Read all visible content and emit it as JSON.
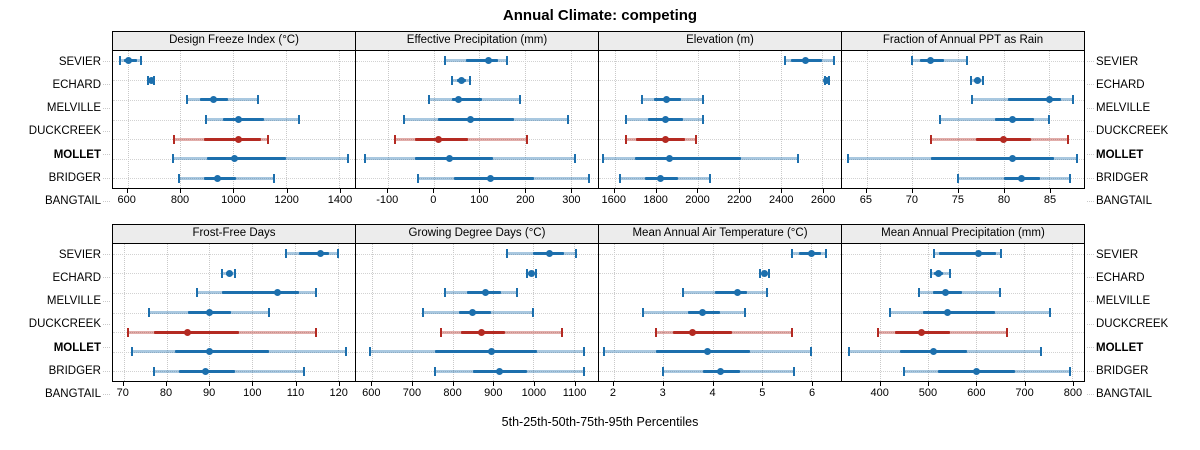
{
  "title": "Annual Climate: competing",
  "caption": "5th-25th-50th-75th-95th Percentiles",
  "sites": [
    "SEVIER",
    "ECHARD",
    "MELVILLE",
    "DUCKCREEK",
    "MOLLET",
    "BRIDGER",
    "BANGTAIL"
  ],
  "highlight_site": "MOLLET",
  "colors": {
    "point_normal": "#1c6fad",
    "band_normal": "rgba(28,111,173,0.38)",
    "point_highlight": "#b42a22",
    "band_highlight": "rgba(180,42,34,0.38)",
    "grid": "#c9c9c9",
    "strip_bg": "#ececec",
    "panel_border": "#000000"
  },
  "percentiles": [
    5,
    25,
    50,
    75,
    95
  ],
  "chart_data": [
    {
      "type": "scatter",
      "title": "Design Freeze Index (°C)",
      "xlim": [
        545,
        1460
      ],
      "ticks": [
        600,
        800,
        1000,
        1200,
        1400
      ],
      "series": [
        {
          "name": "SEVIER",
          "values": [
            570,
            585,
            605,
            635,
            650
          ]
        },
        {
          "name": "ECHARD",
          "values": [
            678,
            685,
            691,
            696,
            701
          ]
        },
        {
          "name": "MELVILLE",
          "values": [
            825,
            875,
            925,
            980,
            1095
          ]
        },
        {
          "name": "DUCKCREEK",
          "values": [
            895,
            960,
            1020,
            1115,
            1250
          ]
        },
        {
          "name": "MOLLET",
          "values": [
            775,
            890,
            1020,
            1105,
            1130
          ]
        },
        {
          "name": "BRIDGER",
          "values": [
            770,
            900,
            1005,
            1200,
            1435
          ]
        },
        {
          "name": "BANGTAIL",
          "values": [
            795,
            890,
            940,
            1010,
            1155
          ]
        }
      ]
    },
    {
      "type": "scatter",
      "title": "Effective Precipitation (mm)",
      "xlim": [
        -170,
        360
      ],
      "ticks": [
        -100,
        0,
        100,
        200,
        300
      ],
      "series": [
        {
          "name": "SEVIER",
          "values": [
            25,
            70,
            120,
            140,
            160
          ]
        },
        {
          "name": "ECHARD",
          "values": [
            40,
            52,
            61,
            70,
            80
          ]
        },
        {
          "name": "MELVILLE",
          "values": [
            -10,
            40,
            55,
            105,
            190
          ]
        },
        {
          "name": "DUCKCREEK",
          "values": [
            -65,
            10,
            80,
            175,
            295
          ]
        },
        {
          "name": "MOLLET",
          "values": [
            -85,
            -40,
            10,
            75,
            205
          ]
        },
        {
          "name": "BRIDGER",
          "values": [
            -150,
            -40,
            35,
            130,
            310
          ]
        },
        {
          "name": "BANGTAIL",
          "values": [
            -35,
            45,
            125,
            220,
            340
          ]
        }
      ]
    },
    {
      "type": "scatter",
      "title": "Elevation (m)",
      "xlim": [
        1525,
        2690
      ],
      "ticks": [
        1600,
        1800,
        2000,
        2200,
        2400,
        2600
      ],
      "series": [
        {
          "name": "SEVIER",
          "values": [
            2420,
            2450,
            2520,
            2600,
            2655
          ]
        },
        {
          "name": "ECHARD",
          "values": [
            2612,
            2617,
            2622,
            2627,
            2632
          ]
        },
        {
          "name": "MELVILLE",
          "values": [
            1730,
            1790,
            1850,
            1920,
            2025
          ]
        },
        {
          "name": "DUCKCREEK",
          "values": [
            1655,
            1760,
            1845,
            1930,
            2025
          ]
        },
        {
          "name": "MOLLET",
          "values": [
            1655,
            1705,
            1845,
            1940,
            1990
          ]
        },
        {
          "name": "BRIDGER",
          "values": [
            1545,
            1700,
            1865,
            2210,
            2485
          ]
        },
        {
          "name": "BANGTAIL",
          "values": [
            1625,
            1745,
            1820,
            1905,
            2060
          ]
        }
      ]
    },
    {
      "type": "scatter",
      "title": "Fraction of Annual PPT as Rain",
      "xlim": [
        62.3,
        88.8
      ],
      "ticks": [
        65,
        70,
        75,
        80,
        85
      ],
      "series": [
        {
          "name": "SEVIER",
          "values": [
            70,
            70.8,
            72,
            73.5,
            76
          ]
        },
        {
          "name": "ECHARD",
          "values": [
            76.4,
            76.8,
            77.1,
            77.4,
            77.7
          ]
        },
        {
          "name": "MELVILLE",
          "values": [
            76.5,
            80.5,
            85,
            86.3,
            87.6
          ]
        },
        {
          "name": "DUCKCREEK",
          "values": [
            73,
            79,
            81,
            83.3,
            85
          ]
        },
        {
          "name": "MOLLET",
          "values": [
            72,
            77,
            80,
            83,
            87
          ]
        },
        {
          "name": "BRIDGER",
          "values": [
            63,
            72,
            81,
            85.5,
            88
          ]
        },
        {
          "name": "BANGTAIL",
          "values": [
            75,
            80,
            82,
            84,
            87.3
          ]
        }
      ]
    },
    {
      "type": "scatter",
      "title": "Frost-Free Days",
      "xlim": [
        67.5,
        124
      ],
      "ticks": [
        70,
        80,
        90,
        100,
        110,
        120
      ],
      "series": [
        {
          "name": "SEVIER",
          "values": [
            108,
            111,
            116,
            118,
            120
          ]
        },
        {
          "name": "ECHARD",
          "values": [
            93,
            93.8,
            94.6,
            95.4,
            96.1
          ]
        },
        {
          "name": "MELVILLE",
          "values": [
            87,
            93,
            106,
            111,
            115
          ]
        },
        {
          "name": "DUCKCREEK",
          "values": [
            76,
            85,
            90,
            95,
            104
          ]
        },
        {
          "name": "MOLLET",
          "values": [
            71,
            77,
            85,
            97,
            115
          ]
        },
        {
          "name": "BRIDGER",
          "values": [
            72,
            82,
            90,
            104,
            122
          ]
        },
        {
          "name": "BANGTAIL",
          "values": [
            77,
            83,
            89,
            96,
            112
          ]
        }
      ]
    },
    {
      "type": "scatter",
      "title": "Growing Degree Days (°C)",
      "xlim": [
        560,
        1160
      ],
      "ticks": [
        600,
        700,
        800,
        900,
        1000,
        1100
      ],
      "series": [
        {
          "name": "SEVIER",
          "values": [
            935,
            1000,
            1040,
            1075,
            1105
          ]
        },
        {
          "name": "ECHARD",
          "values": [
            985,
            991,
            996,
            1001,
            1006
          ]
        },
        {
          "name": "MELVILLE",
          "values": [
            780,
            835,
            880,
            920,
            960
          ]
        },
        {
          "name": "DUCKCREEK",
          "values": [
            725,
            815,
            850,
            895,
            1000
          ]
        },
        {
          "name": "MOLLET",
          "values": [
            770,
            820,
            870,
            930,
            1070
          ]
        },
        {
          "name": "BRIDGER",
          "values": [
            595,
            755,
            895,
            1010,
            1125
          ]
        },
        {
          "name": "BANGTAIL",
          "values": [
            755,
            850,
            915,
            985,
            1125
          ]
        }
      ]
    },
    {
      "type": "scatter",
      "title": "Mean Annual Air Temperature (°C)",
      "xlim": [
        1.7,
        6.6
      ],
      "ticks": [
        2,
        3,
        4,
        5,
        6
      ],
      "series": [
        {
          "name": "SEVIER",
          "values": [
            5.6,
            5.75,
            6.0,
            6.2,
            6.3
          ]
        },
        {
          "name": "ECHARD",
          "values": [
            4.95,
            5.0,
            5.05,
            5.1,
            5.15
          ]
        },
        {
          "name": "MELVILLE",
          "values": [
            3.4,
            4.05,
            4.5,
            4.7,
            5.1
          ]
        },
        {
          "name": "DUCKCREEK",
          "values": [
            2.6,
            3.5,
            3.8,
            4.15,
            4.65
          ]
        },
        {
          "name": "MOLLET",
          "values": [
            2.85,
            3.2,
            3.6,
            4.4,
            5.6
          ]
        },
        {
          "name": "BRIDGER",
          "values": [
            1.8,
            2.85,
            3.9,
            4.75,
            6.0
          ]
        },
        {
          "name": "BANGTAIL",
          "values": [
            3.0,
            3.8,
            4.15,
            4.55,
            5.65
          ]
        }
      ]
    },
    {
      "type": "scatter",
      "title": "Mean Annual Precipitation (mm)",
      "xlim": [
        320,
        825
      ],
      "ticks": [
        400,
        500,
        600,
        700,
        800
      ],
      "series": [
        {
          "name": "SEVIER",
          "values": [
            513,
            522,
            605,
            642,
            652
          ]
        },
        {
          "name": "ECHARD",
          "values": [
            505,
            512,
            521,
            531,
            545
          ]
        },
        {
          "name": "MELVILLE",
          "values": [
            480,
            510,
            535,
            570,
            650
          ]
        },
        {
          "name": "DUCKCREEK",
          "values": [
            420,
            490,
            540,
            640,
            755
          ]
        },
        {
          "name": "MOLLET",
          "values": [
            395,
            430,
            485,
            545,
            665
          ]
        },
        {
          "name": "BRIDGER",
          "values": [
            335,
            440,
            510,
            580,
            735
          ]
        },
        {
          "name": "BANGTAIL",
          "values": [
            450,
            520,
            600,
            680,
            795
          ]
        }
      ]
    }
  ]
}
